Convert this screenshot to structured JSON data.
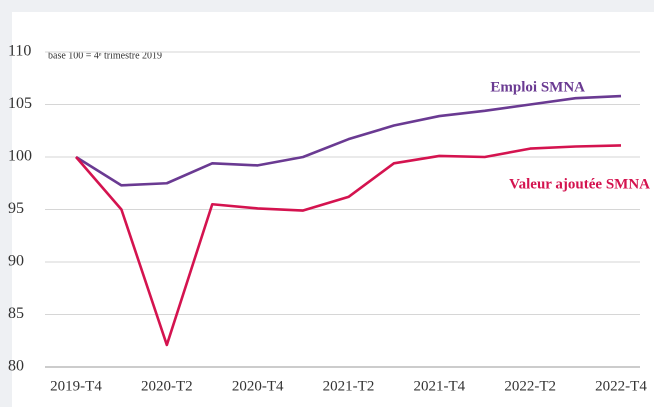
{
  "chart_data": {
    "type": "line",
    "annotation": "base 100 = 4ᵉ trimestre 2019",
    "categories": [
      "2019-T4",
      null,
      "2020-T2",
      null,
      "2020-T4",
      null,
      "2021-T2",
      null,
      "2021-T4",
      null,
      "2022-T2",
      null,
      "2022-T4"
    ],
    "series": [
      {
        "name": "Emploi SMNA",
        "color": "#6a3a92",
        "values": [
          100,
          97.3,
          97.5,
          99.4,
          99.2,
          100,
          101.7,
          103,
          103.9,
          104.4,
          105,
          105.6,
          105.8
        ]
      },
      {
        "name": "Valeur ajoutée SMNA",
        "color": "#d4134f",
        "values": [
          100,
          95,
          82.1,
          95.5,
          95.1,
          94.9,
          96.2,
          99.4,
          100.1,
          100,
          100.8,
          101,
          101.1
        ]
      }
    ],
    "ylim": [
      80,
      110
    ],
    "yticks": [
      80,
      85,
      90,
      95,
      100,
      105,
      110
    ],
    "grid": true
  }
}
